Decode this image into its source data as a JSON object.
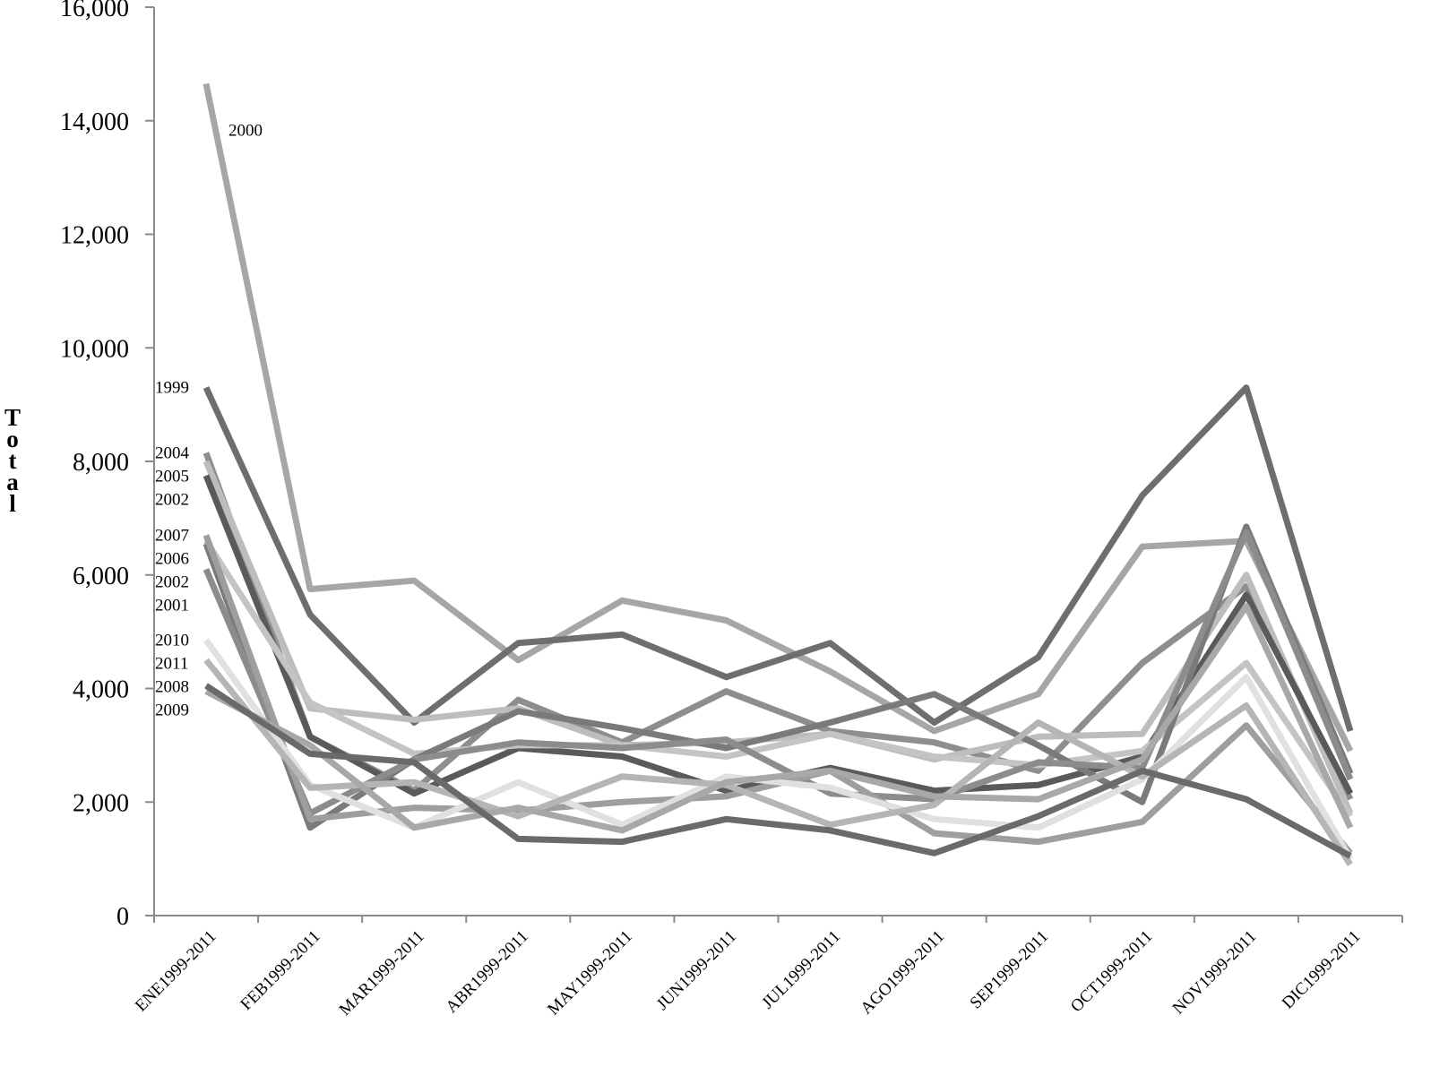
{
  "chart_data": {
    "type": "line",
    "ylabel": "Total",
    "ylim": [
      0,
      16000
    ],
    "yticks": [
      0,
      2000,
      4000,
      6000,
      8000,
      10000,
      12000,
      14000,
      16000
    ],
    "ytick_labels": [
      "0",
      "2,000",
      "4,000",
      "6,000",
      "8,000",
      "10,000",
      "12,000",
      "14,000",
      "16,000"
    ],
    "grid": false,
    "legend": "none",
    "categories": [
      "ENE1999-2011",
      "FEB1999-2011",
      "MAR1999-2011",
      "ABR1999-2011",
      "MAY1999-2011",
      "JUN1999-2011",
      "JUL1999-2011",
      "AGO1999-2011",
      "SEP1999-2011",
      "OCT1999-2011",
      "NOV1999-2011",
      "DIC1999-2011"
    ],
    "series": [
      {
        "name": "2000",
        "color": "#a6a6a6",
        "values": [
          14650,
          5750,
          5900,
          4500,
          5550,
          5200,
          4300,
          3250,
          3900,
          6500,
          6600,
          2900
        ]
      },
      {
        "name": "1999",
        "color": "#6e6e6e",
        "values": [
          9300,
          5300,
          3400,
          4800,
          4950,
          4200,
          4800,
          3400,
          4550,
          7400,
          9300,
          3250
        ]
      },
      {
        "name": "2004",
        "color": "#8e8e8e",
        "values": [
          8150,
          3150,
          2200,
          3800,
          3050,
          3950,
          3250,
          3050,
          2550,
          4450,
          5800,
          2050
        ]
      },
      {
        "name": "2005",
        "color": "#bdbdbd",
        "values": [
          8000,
          3650,
          3450,
          3650,
          3000,
          3050,
          3200,
          2750,
          3150,
          3200,
          6000,
          1800
        ]
      },
      {
        "name": "2002",
        "color": "#5a5a5a",
        "values": [
          7750,
          3150,
          2150,
          2950,
          2800,
          2200,
          2600,
          2200,
          2300,
          2800,
          5650,
          2150
        ]
      },
      {
        "name": "2006",
        "color": "#c4c4c4",
        "values": [
          6600,
          3750,
          2850,
          3000,
          3000,
          2800,
          3200,
          2800,
          2650,
          2900,
          4450,
          1750
        ]
      },
      {
        "name": "2002",
        "color": "#7a7a7a",
        "values": [
          6550,
          1550,
          2750,
          3600,
          3300,
          2950,
          3400,
          3900,
          3000,
          2000,
          6850,
          2500
        ]
      },
      {
        "name": "2001",
        "color": "#8c8c8c",
        "values": [
          6100,
          1800,
          2750,
          3050,
          2950,
          3100,
          2150,
          2050,
          2700,
          2600,
          6750,
          2400
        ]
      },
      {
        "name": "2007",
        "color": "#9e9e9e",
        "values": [
          6700,
          1700,
          1900,
          1850,
          2000,
          2100,
          2550,
          1450,
          1300,
          1650,
          3350,
          1100
        ]
      },
      {
        "name": "2010",
        "color": "#e0e0e0",
        "values": [
          4850,
          2300,
          1550,
          2350,
          1600,
          2450,
          2250,
          1700,
          1550,
          2400,
          4200,
          1000
        ]
      },
      {
        "name": "2011",
        "color": "#b5b5b5",
        "values": [
          4500,
          2250,
          2350,
          1750,
          2450,
          2300,
          1600,
          1950,
          3400,
          2450,
          3700,
          900
        ]
      },
      {
        "name": "2009",
        "color": "#a8a8a8",
        "values": [
          3950,
          3000,
          1550,
          1900,
          1500,
          2350,
          2550,
          2100,
          2050,
          2750,
          5450,
          1550
        ]
      },
      {
        "name": "2008",
        "color": "#6a6a6a",
        "values": [
          4050,
          2850,
          2700,
          1350,
          1300,
          1700,
          1500,
          1100,
          1750,
          2550,
          2050,
          1050
        ]
      }
    ]
  }
}
